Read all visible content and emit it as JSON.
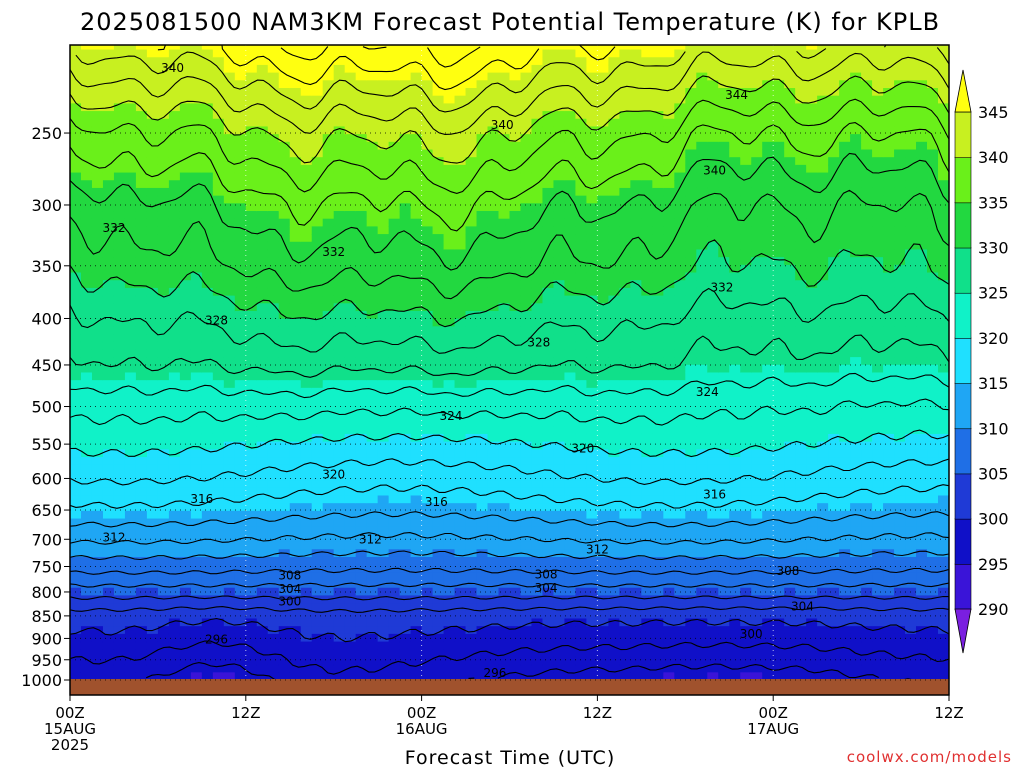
{
  "chart_data": {
    "type": "heatmap",
    "title": "2025081500 NAM3KM Forecast Potential Temperature (K) for KPLB",
    "xlabel": "Forecast Time (UTC)",
    "ylabel": "",
    "x_ticks": [
      {
        "hour": 0,
        "lines": [
          "00Z",
          "15AUG",
          "2025"
        ]
      },
      {
        "hour": 12,
        "lines": [
          "12Z"
        ]
      },
      {
        "hour": 24,
        "lines": [
          "00Z",
          "16AUG"
        ]
      },
      {
        "hour": 36,
        "lines": [
          "12Z"
        ]
      },
      {
        "hour": 48,
        "lines": [
          "00Z",
          "17AUG"
        ]
      },
      {
        "hour": 60,
        "lines": [
          "12Z"
        ]
      }
    ],
    "xlim": [
      0,
      60
    ],
    "ylim": [
      1000,
      200
    ],
    "y_scale": "log",
    "y_ticks": [
      250,
      300,
      350,
      400,
      450,
      500,
      550,
      600,
      650,
      700,
      750,
      800,
      850,
      900,
      950,
      1000
    ],
    "grid": true,
    "colorbar": {
      "levels": [
        290,
        295,
        300,
        305,
        310,
        315,
        320,
        325,
        330,
        335,
        340,
        345
      ],
      "labels": [
        "290",
        "295",
        "300",
        "305",
        "310",
        "315",
        "320",
        "325",
        "330",
        "335",
        "340",
        "345"
      ],
      "colors": [
        "#7a1fe0",
        "#3a14d8",
        "#1010c8",
        "#1f3ad6",
        "#1f6fe6",
        "#1fa6f4",
        "#1fe0ff",
        "#10f2c8",
        "#10e08a",
        "#22d840",
        "#6af01a",
        "#c8f020",
        "#ffff10"
      ]
    },
    "contour_interval": 2,
    "contour_labels": [
      {
        "text": "340",
        "hour": 7.0,
        "p": 212
      },
      {
        "text": "344",
        "hour": 45.5,
        "p": 227
      },
      {
        "text": "340",
        "hour": 29.5,
        "p": 245
      },
      {
        "text": "340",
        "hour": 44.0,
        "p": 275
      },
      {
        "text": "332",
        "hour": 3.0,
        "p": 318
      },
      {
        "text": "332",
        "hour": 18.0,
        "p": 338
      },
      {
        "text": "332",
        "hour": 44.5,
        "p": 370
      },
      {
        "text": "328",
        "hour": 10.0,
        "p": 402
      },
      {
        "text": "328",
        "hour": 32.0,
        "p": 425
      },
      {
        "text": "324",
        "hour": 43.5,
        "p": 482
      },
      {
        "text": "324",
        "hour": 26.0,
        "p": 512
      },
      {
        "text": "320",
        "hour": 35.0,
        "p": 556
      },
      {
        "text": "320",
        "hour": 18.0,
        "p": 594
      },
      {
        "text": "316",
        "hour": 9.0,
        "p": 632
      },
      {
        "text": "316",
        "hour": 25.0,
        "p": 637
      },
      {
        "text": "316",
        "hour": 44.0,
        "p": 625
      },
      {
        "text": "312",
        "hour": 3.0,
        "p": 697
      },
      {
        "text": "312",
        "hour": 20.5,
        "p": 700
      },
      {
        "text": "312",
        "hour": 36.0,
        "p": 718
      },
      {
        "text": "308",
        "hour": 15.0,
        "p": 767
      },
      {
        "text": "308",
        "hour": 32.5,
        "p": 765
      },
      {
        "text": "308",
        "hour": 49.0,
        "p": 759
      },
      {
        "text": "304",
        "hour": 15.0,
        "p": 794
      },
      {
        "text": "304",
        "hour": 32.5,
        "p": 792
      },
      {
        "text": "304",
        "hour": 50.0,
        "p": 830
      },
      {
        "text": "300",
        "hour": 15.0,
        "p": 820
      },
      {
        "text": "300",
        "hour": 46.5,
        "p": 890
      },
      {
        "text": "296",
        "hour": 10.0,
        "p": 902
      },
      {
        "text": "296",
        "hour": 29.0,
        "p": 982
      }
    ],
    "credit": "coolwx.com/models"
  }
}
